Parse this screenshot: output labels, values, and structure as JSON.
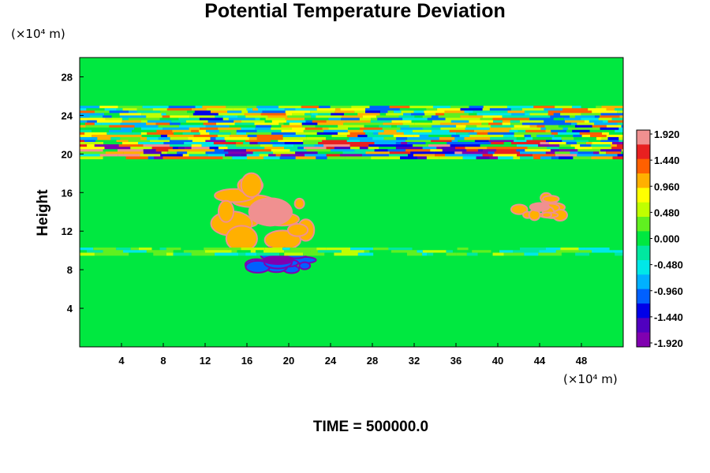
{
  "chart_data": {
    "type": "heatmap",
    "title": "Potential Temperature Deviation",
    "ylabel": "Height",
    "y_unit_label": "(×10⁴ m)",
    "x_unit_label": "(×10⁴ m)",
    "xlim": [
      0,
      52
    ],
    "ylim": [
      0,
      30
    ],
    "x_ticks": [
      4,
      8,
      12,
      16,
      20,
      24,
      28,
      32,
      36,
      40,
      44,
      48
    ],
    "y_ticks": [
      4,
      8,
      12,
      16,
      20,
      24,
      28
    ],
    "colorbar": {
      "min": -1.92,
      "max": 1.92,
      "labels": [
        "1.920",
        "1.440",
        "0.960",
        "0.480",
        "0.000",
        "-0.480",
        "-0.960",
        "-1.440",
        "-1.920"
      ],
      "colors": [
        "#f09090",
        "#e82020",
        "#ff6000",
        "#ffb000",
        "#ffff00",
        "#c0ff00",
        "#60f020",
        "#00e840",
        "#00e8a0",
        "#00e8e8",
        "#00b0ff",
        "#0060ff",
        "#0000e8",
        "#5000c0",
        "#8000b0"
      ]
    },
    "features": [
      {
        "label": "tropopause-layer",
        "y_range": [
          19.5,
          21.5
        ],
        "x_range": [
          0,
          52
        ],
        "value_range": [
          -1.92,
          1.92
        ]
      },
      {
        "label": "upper-wave-band",
        "y_range": [
          21.5,
          25
        ],
        "x_range": [
          0,
          52
        ],
        "value_range": [
          -1.2,
          1.4
        ]
      },
      {
        "label": "convective-warm-cell",
        "y_range": [
          11,
          17
        ],
        "x_range": [
          14,
          22.5
        ],
        "value": 1.92
      },
      {
        "label": "cold-anvil-base",
        "y_range": [
          8,
          10
        ],
        "x_range": [
          16,
          22
        ],
        "value": -1.92
      },
      {
        "label": "low-level-band",
        "y_range": [
          9.5,
          10.3
        ],
        "x_range": [
          0,
          52
        ],
        "value_range": [
          -0.6,
          0.6
        ]
      },
      {
        "label": "warm-patch-east",
        "y_range": [
          13.5,
          15.5
        ],
        "x_range": [
          42,
          46
        ],
        "value": 1.92
      }
    ],
    "time_label": "TIME = 500000.0"
  }
}
